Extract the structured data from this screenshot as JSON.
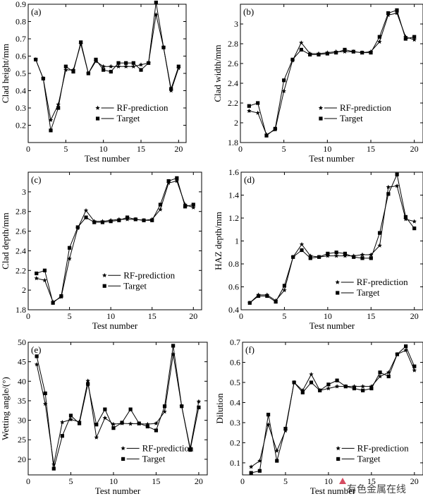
{
  "watermark": "有色金属在线",
  "chart_data": [
    {
      "type": "line",
      "panel_label": "(a)",
      "xlabel": "Test number",
      "ylabel": "Clad height/mm",
      "xlim": [
        0,
        21
      ],
      "ylim": [
        0.1,
        0.9
      ],
      "xticks": [
        0,
        5,
        10,
        15,
        20
      ],
      "yticks": [
        0.2,
        0.3,
        0.4,
        0.5,
        0.6,
        0.7,
        0.8,
        0.9
      ],
      "legend_position": "center-right",
      "x": [
        1,
        2,
        3,
        4,
        5,
        6,
        7,
        8,
        9,
        10,
        11,
        12,
        13,
        14,
        15,
        16,
        17,
        18,
        19,
        20
      ],
      "series": [
        {
          "name": "RF-prediction",
          "marker": "star",
          "values": [
            0.58,
            0.47,
            0.23,
            0.32,
            0.52,
            0.52,
            0.67,
            0.5,
            0.57,
            0.54,
            0.54,
            0.54,
            0.54,
            0.54,
            0.55,
            0.56,
            0.84,
            0.65,
            0.4,
            0.53
          ]
        },
        {
          "name": "Target",
          "marker": "square",
          "values": [
            0.58,
            0.47,
            0.17,
            0.3,
            0.54,
            0.51,
            0.68,
            0.5,
            0.58,
            0.52,
            0.51,
            0.56,
            0.56,
            0.56,
            0.52,
            0.56,
            0.91,
            0.65,
            0.41,
            0.54
          ]
        }
      ]
    },
    {
      "type": "line",
      "panel_label": "(b)",
      "xlabel": "Test number",
      "ylabel": "Clad width/mm",
      "xlim": [
        0,
        21
      ],
      "ylim": [
        1.8,
        3.2
      ],
      "xticks": [
        0,
        5,
        10,
        15,
        20
      ],
      "yticks": [
        1.8,
        2.0,
        2.2,
        2.4,
        2.6,
        2.8,
        3.0
      ],
      "legend_position": "center-right",
      "x": [
        1,
        2,
        3,
        4,
        5,
        6,
        7,
        8,
        9,
        10,
        11,
        12,
        13,
        14,
        15,
        16,
        17,
        18,
        19,
        20
      ],
      "series": [
        {
          "name": "RF-prediction",
          "marker": "star",
          "values": [
            2.12,
            2.1,
            1.88,
            1.93,
            2.32,
            2.63,
            2.81,
            2.7,
            2.7,
            2.71,
            2.72,
            2.72,
            2.72,
            2.71,
            2.72,
            2.82,
            3.09,
            3.11,
            2.87,
            2.84
          ]
        },
        {
          "name": "Target",
          "marker": "square",
          "values": [
            2.17,
            2.2,
            1.87,
            1.94,
            2.43,
            2.64,
            2.74,
            2.69,
            2.69,
            2.7,
            2.71,
            2.74,
            2.72,
            2.71,
            2.71,
            2.87,
            3.11,
            3.14,
            2.85,
            2.87
          ]
        }
      ]
    },
    {
      "type": "line",
      "panel_label": "(c)",
      "xlabel": "Test number",
      "ylabel": "Clad depth/mm",
      "xlim": [
        0,
        21
      ],
      "ylim": [
        1.8,
        3.2
      ],
      "xticks": [
        0,
        5,
        10,
        15,
        20
      ],
      "yticks": [
        1.8,
        2.0,
        2.2,
        2.4,
        2.6,
        2.8,
        3.0
      ],
      "legend_position": "center-right",
      "x": [
        1,
        2,
        3,
        4,
        5,
        6,
        7,
        8,
        9,
        10,
        11,
        12,
        13,
        14,
        15,
        16,
        17,
        18,
        19,
        20
      ],
      "series": [
        {
          "name": "RF-prediction",
          "marker": "star",
          "values": [
            2.12,
            2.1,
            1.88,
            1.93,
            2.32,
            2.63,
            2.81,
            2.7,
            2.7,
            2.71,
            2.72,
            2.72,
            2.72,
            2.71,
            2.72,
            2.82,
            3.09,
            3.11,
            2.87,
            2.84
          ]
        },
        {
          "name": "Target",
          "marker": "square",
          "values": [
            2.17,
            2.2,
            1.87,
            1.94,
            2.43,
            2.64,
            2.74,
            2.69,
            2.69,
            2.7,
            2.71,
            2.74,
            2.72,
            2.71,
            2.71,
            2.87,
            3.11,
            3.14,
            2.85,
            2.87
          ]
        }
      ]
    },
    {
      "type": "line",
      "panel_label": "(d)",
      "xlabel": "Test number",
      "ylabel": "HAZ depth/mm",
      "xlim": [
        0,
        21
      ],
      "ylim": [
        0.4,
        1.6
      ],
      "xticks": [
        0,
        5,
        10,
        15,
        20
      ],
      "yticks": [
        0.4,
        0.6,
        0.8,
        1.0,
        1.2,
        1.4,
        1.6
      ],
      "legend_position": "bottom-right",
      "x": [
        1,
        2,
        3,
        4,
        5,
        6,
        7,
        8,
        9,
        10,
        11,
        12,
        13,
        14,
        15,
        16,
        17,
        18,
        19,
        20
      ],
      "series": [
        {
          "name": "RF-prediction",
          "marker": "star",
          "values": [
            0.46,
            0.53,
            0.53,
            0.48,
            0.57,
            0.86,
            0.97,
            0.87,
            0.86,
            0.87,
            0.87,
            0.87,
            0.87,
            0.88,
            0.88,
            0.96,
            1.47,
            1.48,
            1.19,
            1.17
          ]
        },
        {
          "name": "Target",
          "marker": "square",
          "values": [
            0.46,
            0.52,
            0.52,
            0.47,
            0.61,
            0.86,
            0.92,
            0.85,
            0.86,
            0.89,
            0.9,
            0.89,
            0.86,
            0.85,
            0.85,
            1.07,
            1.41,
            1.58,
            1.21,
            1.11
          ]
        }
      ]
    },
    {
      "type": "line",
      "panel_label": "(e)",
      "xlabel": "Test number",
      "ylabel": "Wetting angle/(°)",
      "xlim": [
        0,
        21
      ],
      "ylim": [
        16,
        50
      ],
      "xticks": [
        0,
        5,
        10,
        15,
        20
      ],
      "yticks": [
        20,
        25,
        30,
        35,
        40,
        45,
        50
      ],
      "legend_position": "bottom-right",
      "x": [
        1,
        2,
        3,
        4,
        5,
        6,
        7,
        8,
        9,
        10,
        11,
        12,
        13,
        14,
        15,
        16,
        17,
        18,
        19,
        20
      ],
      "series": [
        {
          "name": "RF-prediction",
          "marker": "star",
          "values": [
            44.3,
            34.2,
            18.7,
            29.5,
            30.2,
            29.6,
            40.1,
            25.6,
            30.6,
            29.0,
            29.2,
            29.1,
            29.1,
            29.0,
            29.2,
            32.2,
            46.9,
            33.6,
            22.8,
            34.8
          ]
        },
        {
          "name": "Target",
          "marker": "square",
          "values": [
            46.4,
            36.9,
            17.6,
            26.0,
            31.2,
            29.2,
            39.3,
            28.9,
            32.8,
            28.0,
            29.4,
            32.8,
            29.2,
            28.4,
            27.4,
            33.6,
            49.1,
            33.6,
            22.4,
            33.3
          ]
        }
      ]
    },
    {
      "type": "line",
      "panel_label": "(f)",
      "xlabel": "Test number",
      "ylabel": "Dilution",
      "xlim": [
        0,
        21
      ],
      "ylim": [
        0.04,
        0.7
      ],
      "xticks": [
        0,
        5,
        10,
        15,
        20
      ],
      "yticks": [
        0.1,
        0.2,
        0.3,
        0.4,
        0.5,
        0.6,
        0.7
      ],
      "legend_position": "bottom-right",
      "x": [
        1,
        2,
        3,
        4,
        5,
        6,
        7,
        8,
        9,
        10,
        11,
        12,
        13,
        14,
        15,
        16,
        17,
        18,
        19,
        20
      ],
      "series": [
        {
          "name": "RF-prediction",
          "marker": "star",
          "values": [
            0.08,
            0.11,
            0.29,
            0.16,
            0.26,
            0.5,
            0.46,
            0.54,
            0.46,
            0.47,
            0.48,
            0.48,
            0.48,
            0.48,
            0.48,
            0.53,
            0.55,
            0.64,
            0.66,
            0.56
          ]
        },
        {
          "name": "Target",
          "marker": "square",
          "values": [
            0.05,
            0.06,
            0.34,
            0.11,
            0.27,
            0.5,
            0.45,
            0.5,
            0.46,
            0.49,
            0.51,
            0.48,
            0.47,
            0.46,
            0.47,
            0.55,
            0.53,
            0.64,
            0.68,
            0.58
          ]
        }
      ]
    }
  ]
}
